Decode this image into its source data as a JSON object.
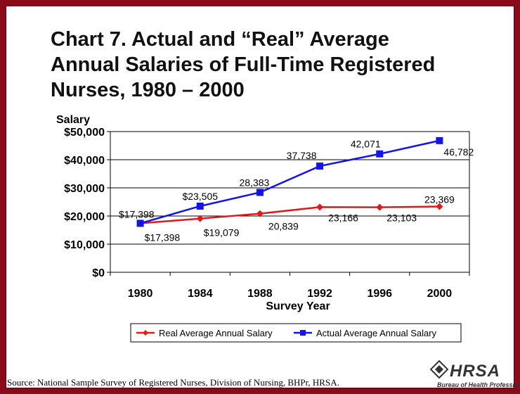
{
  "title_lines": [
    "Chart 7. Actual and “Real” Average",
    "Annual Salaries of Full-Time Registered",
    "Nurses, 1980 – 2000"
  ],
  "source": "Source: National Sample Survey of Registered Nurses, Division of Nursing, BHPr, HRSA.",
  "logo": {
    "word": "HRSA",
    "sub": "Bureau of Health Professions"
  },
  "chart_data": {
    "type": "line",
    "title": "Chart 7. Actual and “Real” Average Annual Salaries of Full-Time Registered Nurses, 1980 – 2000",
    "xlabel": "Survey Year",
    "ylabel": "Salary",
    "x": [
      "1980",
      "1984",
      "1988",
      "1992",
      "1996",
      "2000"
    ],
    "ylim": [
      0,
      50000
    ],
    "yticks": [
      "$0",
      "$10,000",
      "$20,000",
      "$30,000",
      "$40,000",
      "$50,000"
    ],
    "grid": true,
    "legend_position": "bottom",
    "series": [
      {
        "name": "Real Average Annual Salary",
        "color": "#e0191b",
        "marker": "diamond",
        "values": [
          17398,
          19079,
          20839,
          23166,
          23103,
          23369
        ],
        "labels": [
          "$17,398",
          "$19,079",
          "20,839",
          "23,166",
          "23,103",
          "23,369"
        ]
      },
      {
        "name": "Actual Average Annual Salary",
        "color": "#1414e6",
        "marker": "square",
        "values": [
          17398,
          23505,
          28383,
          37738,
          42071,
          46782
        ],
        "labels": [
          "$17,398",
          "$23,505",
          "28,383",
          "37,738",
          "42,071",
          "46,782"
        ]
      }
    ]
  }
}
